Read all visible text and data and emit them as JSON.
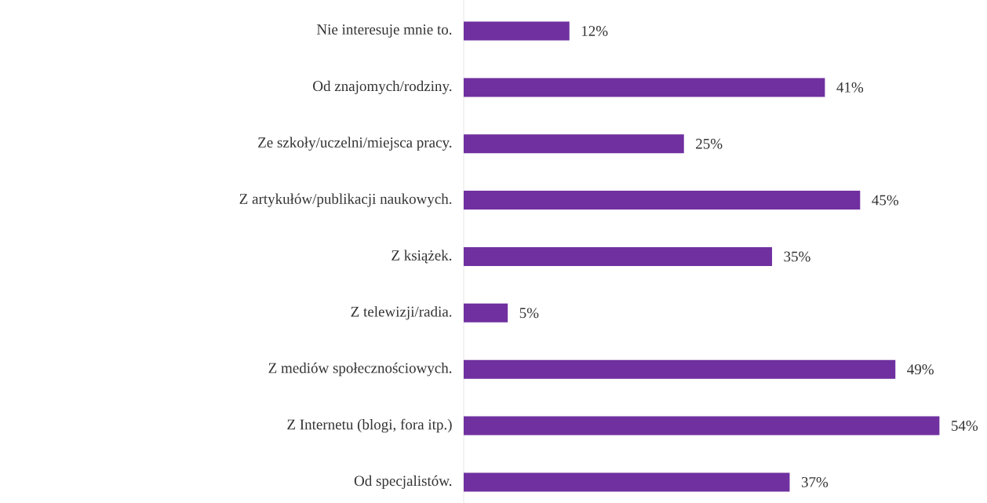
{
  "chart_data": {
    "type": "bar",
    "orientation": "horizontal",
    "categories": [
      "Nie interesuje mnie to.",
      "Od znajomych/rodziny.",
      "Ze szkoły/uczelni/miejsca pracy.",
      "Z artykułów/publikacji naukowych.",
      "Z książek.",
      "Z telewizji/radia.",
      "Z mediów społecznościowych.",
      "Z Internetu (blogi, fora itp.)",
      "Od specjalistów."
    ],
    "values": [
      12,
      41,
      25,
      45,
      35,
      5,
      49,
      54,
      37
    ],
    "value_labels": [
      "12%",
      "41%",
      "25%",
      "45%",
      "35%",
      "5%",
      "49%",
      "54%",
      "37%"
    ],
    "color": "#7030a0"
  }
}
